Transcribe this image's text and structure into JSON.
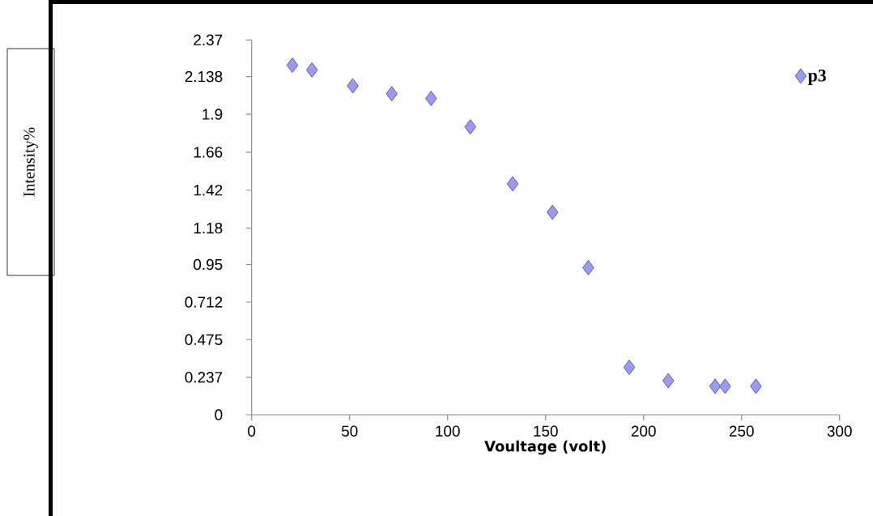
{
  "chart_data": {
    "type": "scatter",
    "xlabel": "Voultage (volt)",
    "annotations": [
      "Intensity%"
    ],
    "x": [
      20.8,
      30.8,
      51.6,
      71.5,
      91.6,
      111.6,
      133.2,
      153.5,
      171.8,
      192.7,
      212.6,
      236.5,
      241.6,
      257.3
    ],
    "series": [
      {
        "name": "p3",
        "color": "#9999ff",
        "values": [
          2.21,
          2.18,
          2.08,
          2.03,
          2.0,
          1.82,
          1.46,
          1.28,
          0.93,
          0.3,
          0.215,
          0.18,
          0.18,
          0.18
        ]
      }
    ],
    "xlim": [
      0,
      300
    ],
    "xticks": [
      0,
      50,
      100,
      150,
      200,
      250,
      300
    ],
    "ylim": [
      0,
      2.37
    ],
    "yticks": [
      0,
      0.237,
      0.475,
      0.712,
      0.95,
      1.18,
      1.42,
      1.66,
      1.9,
      2.138,
      2.37
    ],
    "marker": "diamond",
    "legend": "top right",
    "grid": false
  }
}
